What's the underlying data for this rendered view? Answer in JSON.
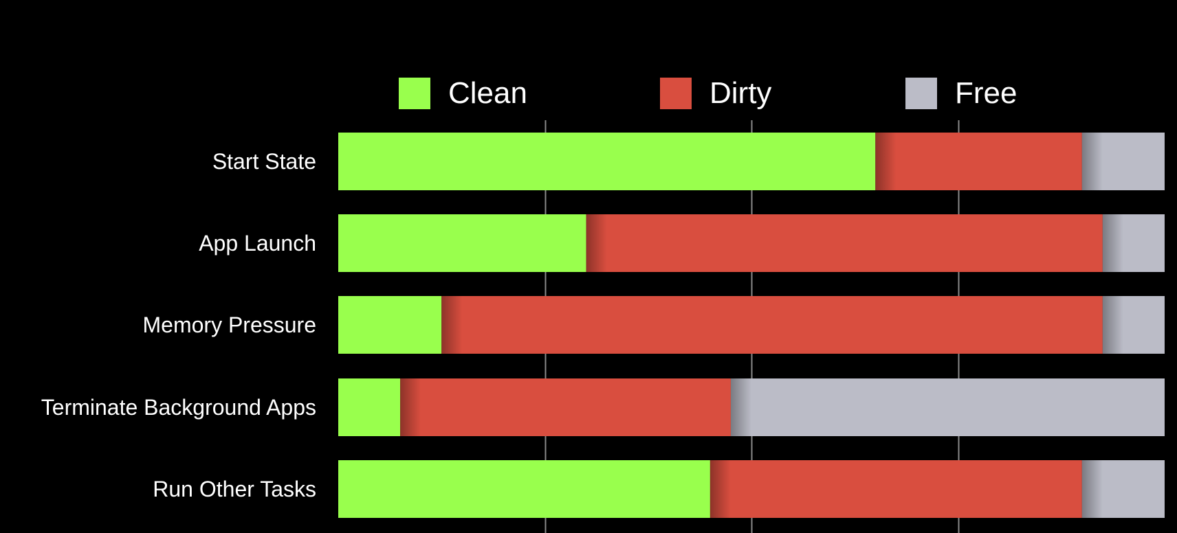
{
  "chart_data": {
    "type": "bar",
    "orientation": "horizontal",
    "stacked": true,
    "title": "",
    "xlabel": "",
    "ylabel": "",
    "xlim": [
      0,
      100
    ],
    "grid": true,
    "legend_position": "top",
    "categories": [
      "Start State",
      "App Launch",
      "Memory Pressure",
      "Terminate Background Apps",
      "Run Other Tasks"
    ],
    "series": [
      {
        "name": "Clean",
        "color": "#99ff4d",
        "values": [
          65,
          30,
          12.5,
          7.5,
          45
        ]
      },
      {
        "name": "Dirty",
        "color": "#d94e3f",
        "values": [
          25,
          62.5,
          80,
          40,
          45
        ]
      },
      {
        "name": "Free",
        "color": "#bbbcc7",
        "values": [
          10,
          7.5,
          7.5,
          52.5,
          10
        ]
      }
    ]
  }
}
